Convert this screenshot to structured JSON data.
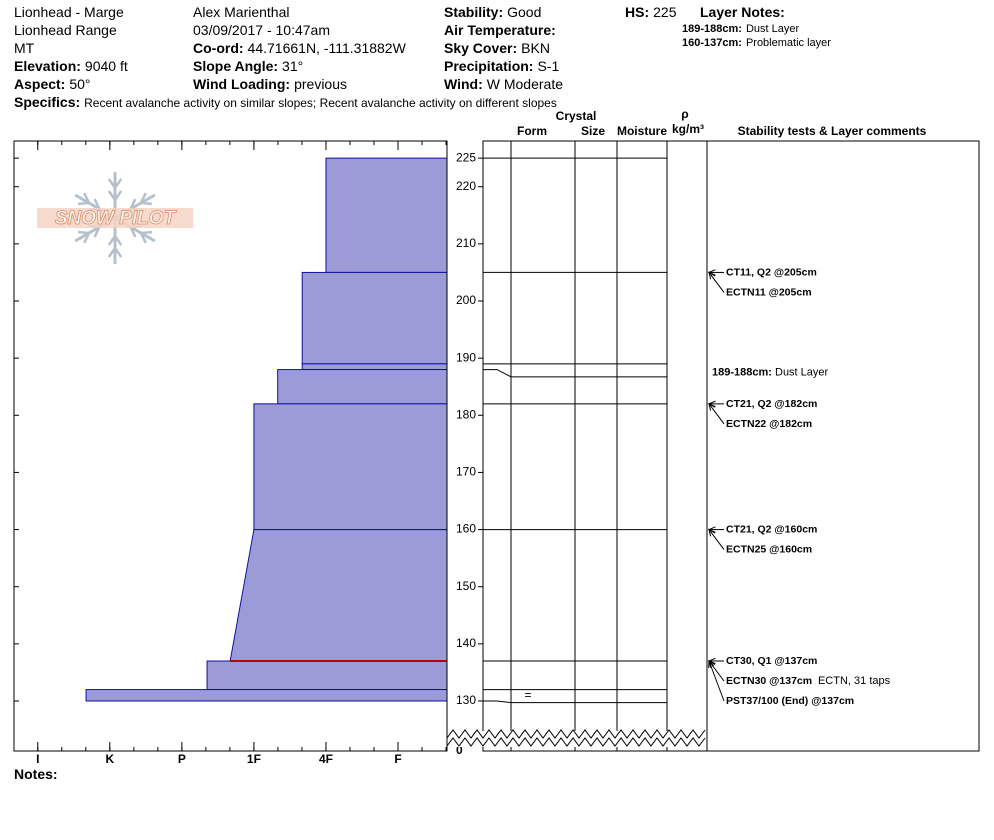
{
  "header": {
    "columns": [
      [
        {
          "value": "Lionhead - Marge"
        },
        {
          "value": "Lionhead Range"
        },
        {
          "value": "MT"
        },
        {
          "label": "Elevation:",
          "value": "9040 ft"
        },
        {
          "label": "Aspect:",
          "value": "50°"
        }
      ],
      [
        {
          "value": "Alex Marienthal"
        },
        {
          "value": "03/09/2017 - 10:47am"
        },
        {
          "label": "Co-ord:",
          "value": "44.71661N, -111.31882W"
        },
        {
          "label": "Slope Angle:",
          "value": "31°"
        },
        {
          "label": "Wind Loading:",
          "value": "previous"
        }
      ],
      [
        {
          "label": "Stability:",
          "value": "Good"
        },
        {
          "label": "Air Temperature:"
        },
        {
          "label": "Sky Cover:",
          "value": "BKN"
        },
        {
          "label": "Precipitation:",
          "value": "S-1"
        },
        {
          "label": "Wind:",
          "value": "W Moderate"
        }
      ],
      [
        {
          "label": "HS:",
          "value": "225"
        }
      ]
    ],
    "layer_notes": {
      "title": "Layer Notes:",
      "items": [
        {
          "label": "189-188cm:",
          "value": "Dust Layer"
        },
        {
          "label": "160-137cm:",
          "value": "Problematic layer"
        }
      ]
    },
    "specifics": {
      "label": "Specifics:",
      "value": "Recent avalanche activity on similar slopes; Recent avalanche activity on different slopes"
    }
  },
  "notes_label": "Notes:",
  "chart_data": {
    "type": "snow-profile",
    "logo": "SNOW PILOT",
    "ylim": [
      130,
      228
    ],
    "yticks": [
      130,
      140,
      150,
      160,
      170,
      180,
      190,
      200,
      210,
      220,
      225
    ],
    "axis_floor": 0,
    "xlim": [
      6.33,
      0.32
    ],
    "xticks": [
      {
        "value": 6,
        "label": "I"
      },
      {
        "value": 5,
        "label": "K"
      },
      {
        "value": 4,
        "label": "P"
      },
      {
        "value": 3,
        "label": "1F"
      },
      {
        "value": 2,
        "label": "4F"
      },
      {
        "value": 1,
        "label": "F"
      }
    ],
    "fill": "#9b9bd8",
    "edge": "#1010a0",
    "layers": [
      {
        "top": 225,
        "bottom": 205,
        "hardness": 2
      },
      {
        "top": 205,
        "bottom": 189,
        "hardness": 2.33
      },
      {
        "top": 189,
        "bottom": 188,
        "hardness": 2.33,
        "comment_label": "189-188cm:",
        "comment": "Dust Layer"
      },
      {
        "top": 188,
        "bottom": 182,
        "hardness": 2.67
      },
      {
        "top": 182,
        "bottom": 160,
        "hardness": 3
      },
      {
        "top": 160,
        "bottom": 137,
        "hardness": 3,
        "hardness_bottom": 3.33
      },
      {
        "top": 137,
        "bottom": 132,
        "hardness": 3.65
      },
      {
        "top": 132,
        "bottom": 130,
        "hardness": 5.33,
        "form": "="
      }
    ],
    "critical_height": 137,
    "critical_color": "#c00000",
    "table_headers": {
      "crystal": "Crystal",
      "form": "Form",
      "size": "Size",
      "moisture": "Moisture",
      "density_symbol": "ρ",
      "density_unit": "kg/m³",
      "comments": "Stability tests & Layer comments"
    },
    "tests": [
      {
        "height": 205,
        "label": "CT11, Q2 @205cm"
      },
      {
        "height": 205,
        "label": "ECTN11 @205cm"
      },
      {
        "height": 182,
        "label": "CT21, Q2 @182cm"
      },
      {
        "height": 182,
        "label": "ECTN22 @182cm"
      },
      {
        "height": 160,
        "label": "CT21, Q2 @160cm"
      },
      {
        "height": 160,
        "label": "ECTN25 @160cm"
      },
      {
        "height": 137,
        "label": "CT30, Q1 @137cm"
      },
      {
        "height": 137,
        "label": "ECTN30 @137cm",
        "comment": "ECTN, 31 taps"
      },
      {
        "height": 137,
        "label": "PST37/100 (End) @137cm"
      }
    ]
  }
}
